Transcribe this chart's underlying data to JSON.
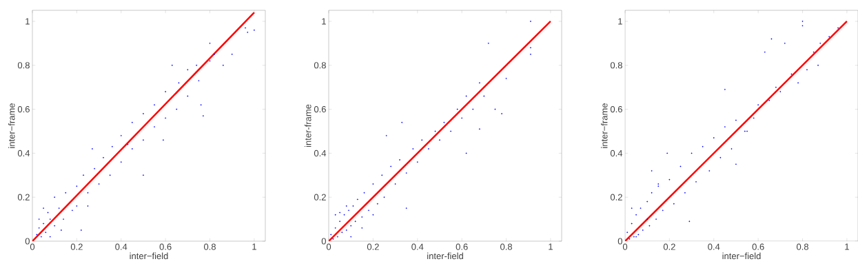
{
  "chart_data": [
    {
      "type": "scatter",
      "xlabel": "inter−field",
      "ylabel": "inter−frame",
      "xlim": [
        0,
        1.05
      ],
      "ylim": [
        0,
        1.05
      ],
      "xticks": [
        0,
        0.2,
        0.4,
        0.6,
        0.8,
        1
      ],
      "yticks": [
        0,
        0.2,
        0.4,
        0.6,
        0.8,
        1
      ],
      "series": [
        {
          "color": "#0000ff",
          "x": [
            0.96,
            0.97,
            1.0,
            0.9,
            0.86,
            0.8,
            0.77,
            0.76,
            0.63,
            0.59,
            0.5,
            0.43,
            0.27,
            0.25,
            0.22,
            0.02,
            0.03,
            0.05,
            0.04,
            0.06,
            0.08,
            0.07,
            0.1,
            0.12,
            0.1,
            0.14,
            0.15,
            0.18,
            0.2,
            0.2,
            0.23,
            0.25,
            0.28,
            0.3,
            0.32,
            0.35,
            0.36,
            0.4,
            0.4,
            0.45,
            0.45,
            0.5,
            0.5,
            0.55,
            0.55,
            0.6,
            0.6,
            0.65,
            0.66,
            0.7,
            0.7,
            0.75,
            0.74,
            0.8,
            0.82,
            0.08,
            0.03,
            0.05,
            0.13
          ],
          "values": [
            0.97,
            0.95,
            0.96,
            0.85,
            0.8,
            0.9,
            0.57,
            0.62,
            0.8,
            0.46,
            0.3,
            0.44,
            0.42,
            0.16,
            0.05,
            0.03,
            0.06,
            0.08,
            0.02,
            0.04,
            0.1,
            0.13,
            0.07,
            0.15,
            0.2,
            0.1,
            0.22,
            0.14,
            0.25,
            0.16,
            0.3,
            0.22,
            0.33,
            0.26,
            0.38,
            0.3,
            0.43,
            0.36,
            0.48,
            0.42,
            0.54,
            0.46,
            0.58,
            0.52,
            0.62,
            0.56,
            0.68,
            0.6,
            0.72,
            0.66,
            0.78,
            0.73,
            0.8,
            0.82,
            0.85,
            0.02,
            0.1,
            0.15,
            0.05
          ]
        },
        {
          "type": "line",
          "color": "#ff0000",
          "x": [
            0,
            1
          ],
          "values": [
            0,
            1.04
          ]
        }
      ]
    },
    {
      "type": "scatter",
      "xlabel": "inter-field",
      "ylabel": "inter-frame",
      "xlim": [
        0,
        1.05
      ],
      "ylim": [
        0,
        1.05
      ],
      "xticks": [
        0,
        0.2,
        0.4,
        0.6,
        0.8,
        1
      ],
      "yticks": [
        0,
        0.2,
        0.4,
        0.6,
        0.8,
        1
      ],
      "series": [
        {
          "color": "#0000ff",
          "x": [
            0.91,
            0.91,
            0.91,
            0.72,
            0.78,
            0.75,
            0.33,
            0.26,
            0.35,
            0.68,
            0.8,
            0.62,
            0.01,
            0.02,
            0.03,
            0.04,
            0.05,
            0.06,
            0.07,
            0.08,
            0.09,
            0.1,
            0.11,
            0.12,
            0.13,
            0.15,
            0.16,
            0.18,
            0.2,
            0.22,
            0.24,
            0.25,
            0.28,
            0.3,
            0.32,
            0.35,
            0.38,
            0.4,
            0.42,
            0.45,
            0.48,
            0.5,
            0.52,
            0.55,
            0.58,
            0.6,
            0.62,
            0.65,
            0.68,
            0.7,
            0.05,
            0.1,
            0.15,
            0.2,
            0.03,
            0.08
          ],
          "values": [
            1.0,
            0.88,
            0.85,
            0.9,
            0.58,
            0.6,
            0.54,
            0.48,
            0.15,
            0.51,
            0.74,
            0.4,
            0.03,
            0.01,
            0.06,
            0.02,
            0.09,
            0.04,
            0.12,
            0.05,
            0.14,
            0.07,
            0.16,
            0.09,
            0.19,
            0.11,
            0.22,
            0.14,
            0.26,
            0.17,
            0.3,
            0.2,
            0.34,
            0.26,
            0.37,
            0.31,
            0.42,
            0.36,
            0.46,
            0.42,
            0.5,
            0.46,
            0.54,
            0.5,
            0.6,
            0.56,
            0.66,
            0.6,
            0.72,
            0.66,
            0.13,
            0.02,
            0.06,
            0.12,
            0.12,
            0.16
          ]
        },
        {
          "type": "line",
          "color": "#ff0000",
          "x": [
            0,
            1
          ],
          "values": [
            0,
            1
          ]
        }
      ]
    },
    {
      "type": "scatter",
      "xlabel": "inter−field",
      "ylabel": "inter−frame",
      "xlim": [
        0,
        1.05
      ],
      "ylim": [
        0,
        1.05
      ],
      "xticks": [
        0,
        0.2,
        0.4,
        0.6,
        0.8,
        1
      ],
      "yticks": [
        0,
        0.2,
        0.4,
        0.6,
        0.8,
        1
      ],
      "series": [
        {
          "color": "#0000ff",
          "x": [
            0.8,
            0.8,
            0.66,
            0.72,
            0.63,
            0.58,
            0.19,
            0.12,
            0.15,
            0.29,
            0.5,
            0.96,
            0.88,
            0.82,
            0.87,
            0.45,
            0.54,
            0.01,
            0.02,
            0.03,
            0.04,
            0.05,
            0.06,
            0.07,
            0.08,
            0.1,
            0.11,
            0.12,
            0.14,
            0.15,
            0.17,
            0.2,
            0.22,
            0.25,
            0.27,
            0.3,
            0.32,
            0.35,
            0.38,
            0.4,
            0.43,
            0.45,
            0.48,
            0.5,
            0.55,
            0.6,
            0.65,
            0.68,
            0.7,
            0.75,
            0.78,
            0.85,
            0.92,
            0.05,
            0.1,
            0.03
          ],
          "values": [
            1.0,
            0.98,
            0.92,
            0.9,
            0.86,
            0.56,
            0.4,
            0.32,
            0.25,
            0.09,
            0.35,
            0.97,
            0.9,
            0.78,
            0.8,
            0.69,
            0.5,
            0.04,
            0.01,
            0.08,
            0.02,
            0.12,
            0.03,
            0.15,
            0.05,
            0.18,
            0.07,
            0.22,
            0.1,
            0.26,
            0.14,
            0.28,
            0.17,
            0.34,
            0.22,
            0.4,
            0.27,
            0.43,
            0.32,
            0.47,
            0.38,
            0.52,
            0.42,
            0.55,
            0.5,
            0.62,
            0.64,
            0.7,
            0.68,
            0.76,
            0.72,
            0.86,
            0.93,
            0.02,
            0.1,
            0.15
          ]
        },
        {
          "type": "line",
          "color": "#ff0000",
          "x": [
            0,
            1
          ],
          "values": [
            0,
            1
          ]
        }
      ]
    }
  ]
}
